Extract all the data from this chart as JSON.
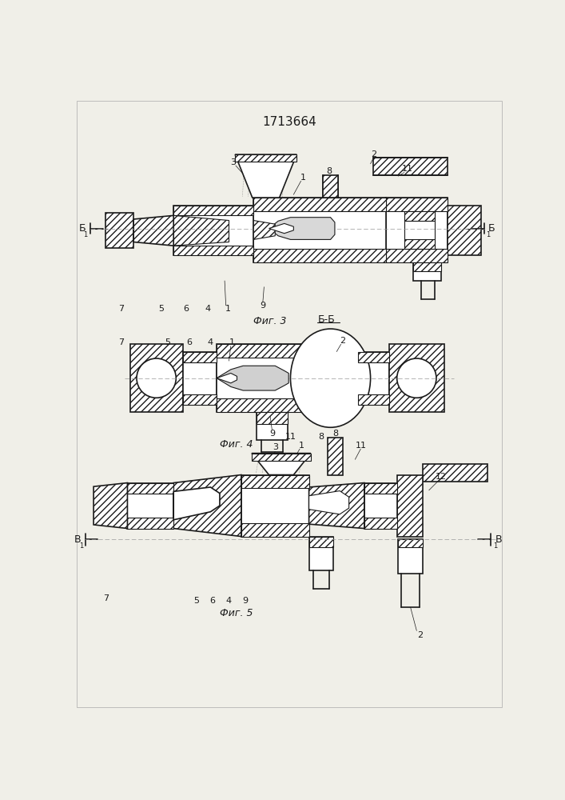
{
  "title": "1713664",
  "bg_color": "#f0efe8",
  "lc": "#1a1a1a",
  "fig3_label": "Фиг. 3",
  "fig4_label": "Фиг. 4",
  "fig5_label": "Фиг. 5",
  "bb_label": "Б-Б"
}
